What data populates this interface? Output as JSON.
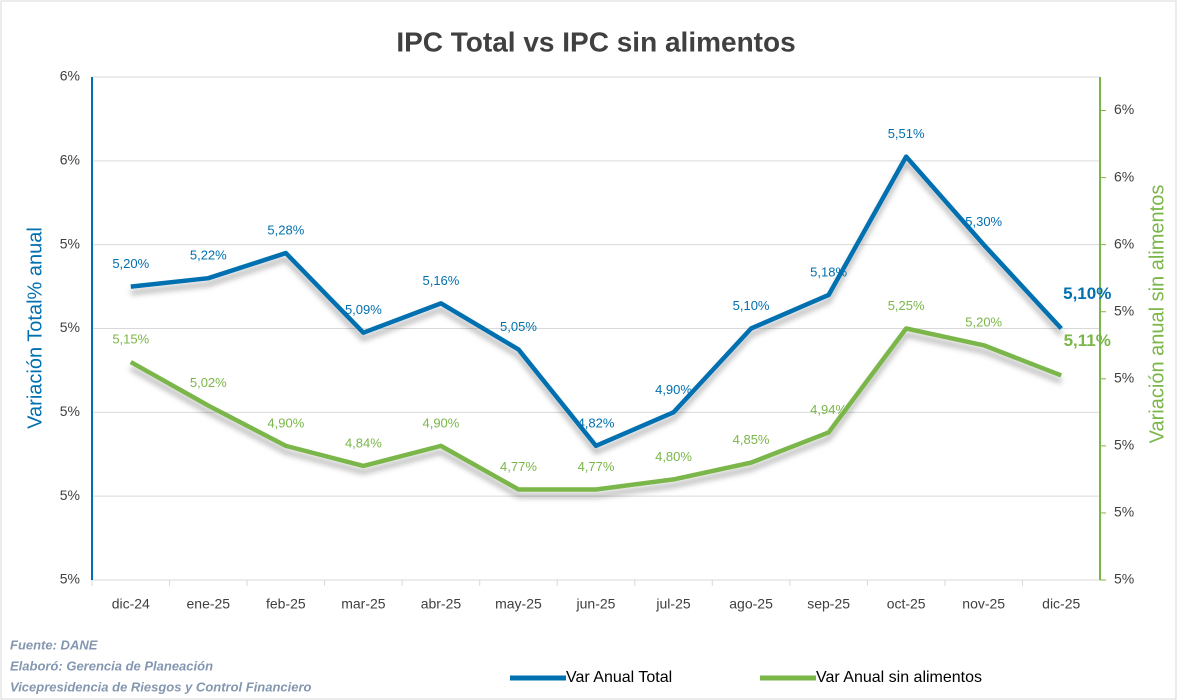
{
  "chart_data": {
    "type": "line",
    "title": "IPC Total vs IPC sin alimentos",
    "y_label": "Variación Total% anual",
    "y2_label": "Variación anual sin alimentos",
    "categories": [
      "dic-24",
      "ene-25",
      "feb-25",
      "mar-25",
      "abr-25",
      "may-25",
      "jun-25",
      "jul-25",
      "ago-25",
      "sep-25",
      "oct-25",
      "nov-25",
      "dic-25"
    ],
    "series": [
      {
        "name": "Var Anual Total",
        "color": "#0070b0",
        "axis": "y",
        "values": [
          5.2,
          5.22,
          5.28,
          5.09,
          5.16,
          5.05,
          4.82,
          4.9,
          5.1,
          5.18,
          5.51,
          5.3,
          5.1
        ],
        "value_labels": [
          "5,20%",
          "5,22%",
          "5,28%",
          "5,09%",
          "5,16%",
          "5,05%",
          "4,82%",
          "4,90%",
          "5,10%",
          "5,18%",
          "5,51%",
          "5,30%",
          "5,10%"
        ]
      },
      {
        "name": "Var Anual sin alimentos",
        "color": "#7ab648",
        "axis": "y2",
        "values": [
          5.15,
          5.02,
          4.9,
          4.84,
          4.9,
          4.77,
          4.77,
          4.8,
          4.85,
          4.94,
          5.25,
          5.2,
          5.11
        ],
        "value_labels": [
          "5,15%",
          "5,02%",
          "4,90%",
          "4,84%",
          "4,90%",
          "4,77%",
          "4,77%",
          "4,80%",
          "4,85%",
          "4,94%",
          "5,25%",
          "5,20%",
          "5,11%"
        ]
      }
    ],
    "ylim": [
      4.5,
      5.7
    ],
    "yticks": [
      {
        "value": 4.5,
        "label": "5%"
      },
      {
        "value": 4.7,
        "label": "5%"
      },
      {
        "value": 4.9,
        "label": "5%"
      },
      {
        "value": 5.1,
        "label": "5%"
      },
      {
        "value": 5.3,
        "label": "5%"
      },
      {
        "value": 5.5,
        "label": "6%"
      },
      {
        "value": 5.7,
        "label": "6%"
      }
    ],
    "y2lim": [
      4.5,
      6.0
    ],
    "y2ticks": [
      {
        "value": 4.5,
        "label": "5%"
      },
      {
        "value": 4.7,
        "label": "5%"
      },
      {
        "value": 4.9,
        "label": "5%"
      },
      {
        "value": 5.1,
        "label": "5%"
      },
      {
        "value": 5.3,
        "label": "5%"
      },
      {
        "value": 5.5,
        "label": "6%"
      },
      {
        "value": 5.7,
        "label": "6%"
      },
      {
        "value": 5.9,
        "label": "6%"
      }
    ],
    "grid": true,
    "legend": "bottom",
    "notes": [
      "Fuente:  DANE",
      "Elaboró: Gerencia de Planeación",
      "Vicepresidencia de Riesgos y Control Financiero"
    ]
  }
}
